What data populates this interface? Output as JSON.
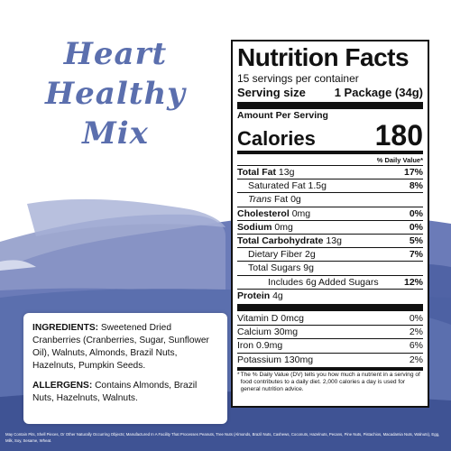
{
  "title": {
    "line1": "Heart",
    "line2": "Healthy Mix"
  },
  "ingredients": {
    "label": "INGREDIENTS:",
    "text": "Sweetened Dried Cranberries (Cranberries, Sugar, Sunflower Oil), Walnuts, Almonds, Brazil Nuts, Hazelnuts, Pumpkin Seeds."
  },
  "allergens": {
    "label": "ALLERGENS:",
    "text": "Contains Almonds, Brazil Nuts, Hazelnuts, Walnuts."
  },
  "footnote": "May Contain Pits, Shell Pieces, Or Other Naturally Occurring Objects; Manufactured In A Facility That Processes Peanuts, Tree Nuts (Almonds, Brazil Nuts, Cashews, Coconuts, Hazelnuts, Pecans, Pine Nuts, Pistachios, Macadamia Nuts, Walnuts), Egg, Milk, Soy, Sesame, Wheat.",
  "nutrition": {
    "heading": "Nutrition Facts",
    "servings": "15 servings per container",
    "serving_size_label": "Serving size",
    "serving_size_value": "1 Package (34g)",
    "amount_per_serving": "Amount Per Serving",
    "calories_label": "Calories",
    "calories_value": "180",
    "dv_header": "% Daily Value*",
    "rows": {
      "total_fat": {
        "name": "Total Fat",
        "amt": "13g",
        "pct": "17%"
      },
      "sat_fat": {
        "name": "Saturated Fat",
        "amt": "1.5g",
        "pct": "8%"
      },
      "trans_fat": {
        "name": "Trans",
        "suffix": "Fat",
        "amt": "0g"
      },
      "cholesterol": {
        "name": "Cholesterol",
        "amt": "0mg",
        "pct": "0%"
      },
      "sodium": {
        "name": "Sodium",
        "amt": "0mg",
        "pct": "0%"
      },
      "carb": {
        "name": "Total Carbohydrate",
        "amt": "13g",
        "pct": "5%"
      },
      "fiber": {
        "name": "Dietary Fiber",
        "amt": "2g",
        "pct": "7%"
      },
      "sugars": {
        "name": "Total Sugars",
        "amt": "9g"
      },
      "added_sugars": {
        "name": "Includes 6g Added Sugars",
        "pct": "12%"
      },
      "protein": {
        "name": "Protein",
        "amt": "4g"
      },
      "vitd": {
        "name": "Vitamin D",
        "amt": "0mcg",
        "pct": "0%"
      },
      "calcium": {
        "name": "Calcium",
        "amt": "30mg",
        "pct": "2%"
      },
      "iron": {
        "name": "Iron",
        "amt": "0.9mg",
        "pct": "6%"
      },
      "potassium": {
        "name": "Potassium",
        "amt": "130mg",
        "pct": "2%"
      }
    },
    "footnote_star": "*",
    "footnote": "The % Daily Value (DV) tells you how much a nutrient in a serving of food contributes to a daily diet. 2,000 calories a day is used for general nutrition advice."
  },
  "colors": {
    "title": "#5b6fae",
    "paint": "#5b6fae",
    "paint_light": "#8c98c7",
    "paint_dark": "#3f5394"
  }
}
